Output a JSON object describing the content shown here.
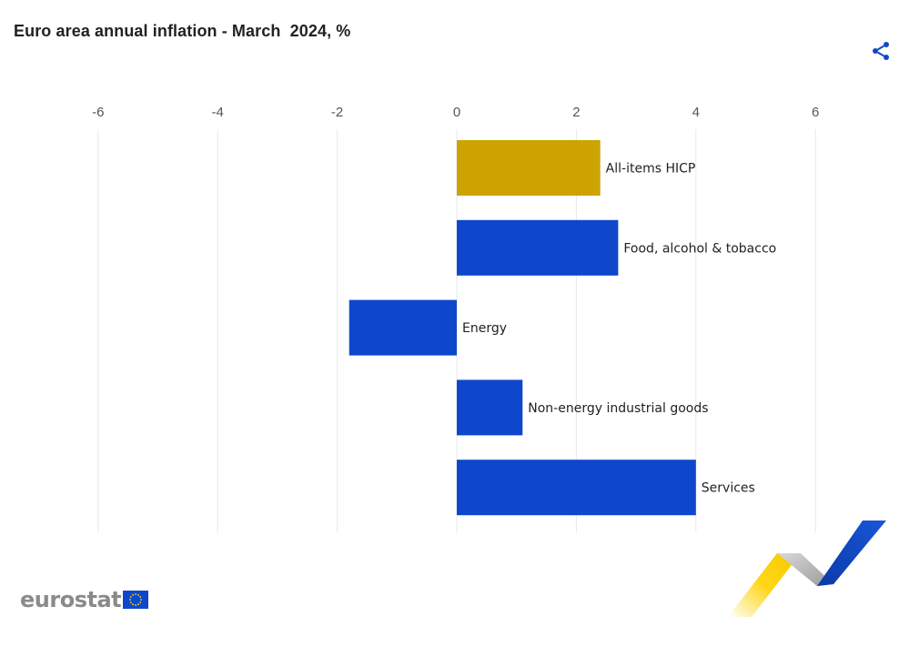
{
  "header": {
    "title": "Euro area annual inflation - March  2024, %"
  },
  "icons": {
    "share": "share-icon",
    "flag": "eu-flag-icon"
  },
  "colors": {
    "highlight": "#cca300",
    "primary": "#0e47cb",
    "grid": "#e6e8f0",
    "logo_text": "#8a8a8a",
    "flag_blue": "#0e47cb",
    "flag_star": "#ffd617"
  },
  "branding": {
    "logo_text": "eurostat"
  },
  "chart_data": {
    "type": "bar",
    "orientation": "horizontal",
    "categories": [
      "All-items HICP",
      "Food, alcohol & tobacco",
      "Energy",
      "Non-energy industrial goods",
      "Services"
    ],
    "values": [
      2.4,
      2.7,
      -1.8,
      1.1,
      4.0
    ],
    "highlight_category": "All-items HICP",
    "xlim": [
      -6,
      7
    ],
    "xticks": [
      "-6",
      "-4",
      "-2",
      "0",
      "2",
      "4",
      "6"
    ],
    "grid": true,
    "tick_position": "top",
    "title": "Euro area annual inflation - March  2024, %"
  }
}
